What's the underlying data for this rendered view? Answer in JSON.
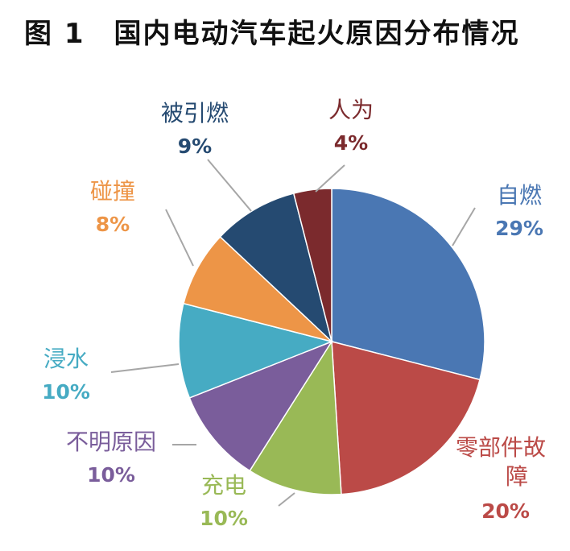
{
  "title": "图 1　国内电动汽车起火原因分布情况",
  "chart_data": {
    "type": "pie",
    "title": "图 1　国内电动汽车起火原因分布情况",
    "slices": [
      {
        "label": "自燃",
        "value": 29,
        "value_label": "29%",
        "color": "#4a77b3"
      },
      {
        "label": "零部件故障",
        "value": 20,
        "value_label": "20%",
        "color": "#bb4a47"
      },
      {
        "label": "充电",
        "value": 10,
        "value_label": "10%",
        "color": "#99b956"
      },
      {
        "label": "不明原因",
        "value": 10,
        "value_label": "10%",
        "color": "#7a5d9b"
      },
      {
        "label": "浸水",
        "value": 10,
        "value_label": "10%",
        "color": "#46abc3"
      },
      {
        "label": "碰撞",
        "value": 8,
        "value_label": "8%",
        "color": "#ed9547"
      },
      {
        "label": "被引燃",
        "value": 9,
        "value_label": "9%",
        "color": "#254a71"
      },
      {
        "label": "人为",
        "value": 4,
        "value_label": "4%",
        "color": "#7b2a2d"
      }
    ],
    "start_angle_deg": 0,
    "direction": "clockwise",
    "legend": "none"
  }
}
